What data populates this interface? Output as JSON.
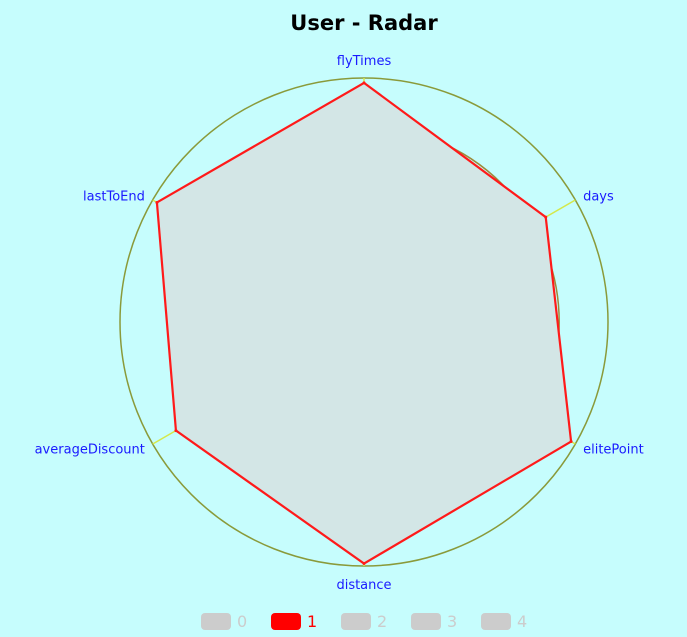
{
  "chart_data": {
    "type": "radar",
    "title": "User - Radar",
    "indicators": [
      "flyTimes",
      "days",
      "elitePoint",
      "distance",
      "averageDiscount",
      "lastToEnd"
    ],
    "max": 1.0,
    "series": [
      {
        "name": "1",
        "values": [
          0.98,
          0.86,
          0.98,
          0.99,
          0.89,
          0.98
        ],
        "color": "#ff1a1a",
        "selected": true
      }
    ],
    "legend": {
      "position": "bottom",
      "items": [
        {
          "label": "0",
          "selected": false,
          "color": "#cccccc"
        },
        {
          "label": "1",
          "selected": true,
          "color": "#ff0000"
        },
        {
          "label": "2",
          "selected": false,
          "color": "#cccccc"
        },
        {
          "label": "3",
          "selected": false,
          "color": "#cccccc"
        },
        {
          "label": "4",
          "selected": false,
          "color": "#cccccc"
        }
      ]
    },
    "colors": {
      "background": "#c6fdfd",
      "ring": "#9c8a3a",
      "outer_ring": "#8a9a3a",
      "spoke": "#d4e84a",
      "area_fill": "#d3e6e6",
      "label": "#1a1aff"
    }
  }
}
